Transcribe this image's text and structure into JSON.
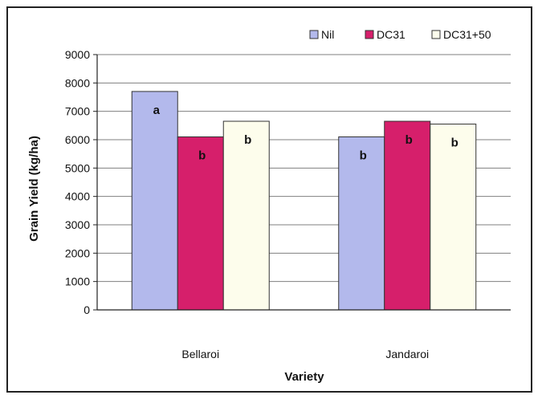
{
  "chart_data": {
    "type": "bar",
    "title": "",
    "xlabel": "Variety",
    "ylabel": "Grain Yield (kg/ha)",
    "categories": [
      "Bellaroi",
      "Jandaroi"
    ],
    "series": [
      {
        "name": "Nil",
        "color": "#b3b9ec",
        "values": [
          7700,
          6100
        ],
        "labels": [
          "a",
          "b"
        ]
      },
      {
        "name": "DC31",
        "color": "#d61f6b",
        "values": [
          6100,
          6650
        ],
        "labels": [
          "b",
          "b"
        ]
      },
      {
        "name": "DC31+50",
        "color": "#fdfdec",
        "values": [
          6650,
          6550
        ],
        "labels": [
          "b",
          "b"
        ]
      }
    ],
    "ylim": [
      0,
      9000
    ],
    "yticks": [
      0,
      1000,
      2000,
      3000,
      4000,
      5000,
      6000,
      7000,
      8000,
      9000
    ],
    "grid": true,
    "legend_position": "top-right"
  }
}
